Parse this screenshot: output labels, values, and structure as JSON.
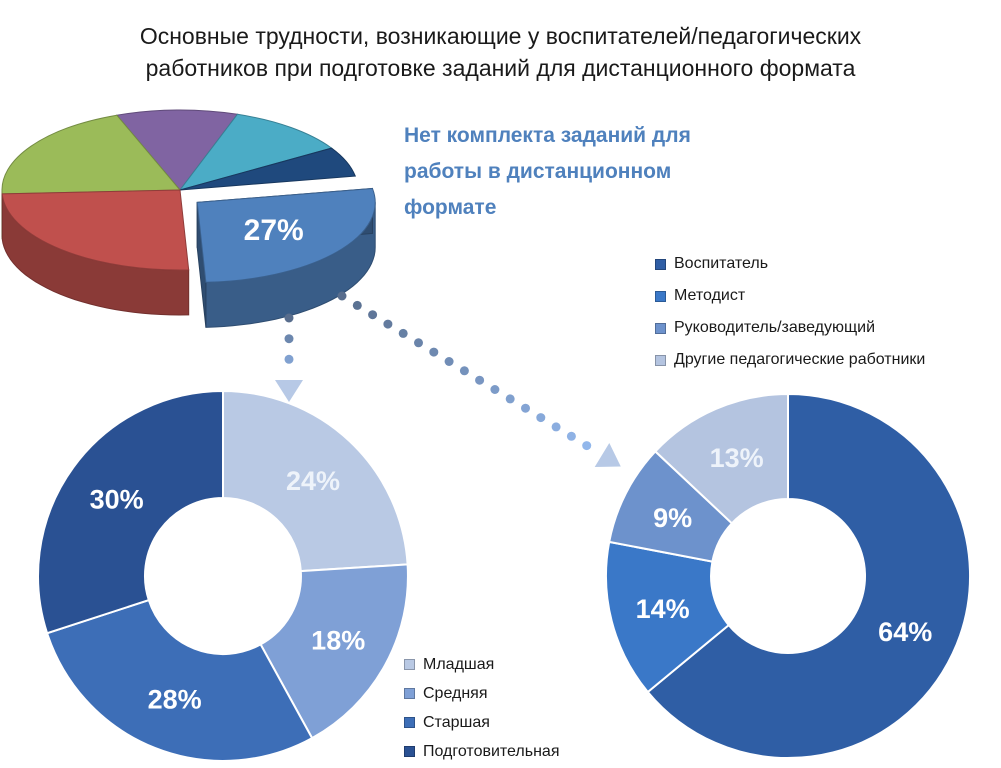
{
  "title": {
    "line1": "Основные трудности, возникающие у воспитателей/педагогических",
    "line2": "работников при подготовке заданий для дистанционного формата"
  },
  "callout": {
    "text": "Нет комплекта заданий для работы в дистанционном формате"
  },
  "chart_data": [
    {
      "type": "pie",
      "style": "3d-exploded",
      "categories": [
        "",
        "",
        "",
        "",
        "",
        ""
      ],
      "values": [
        27,
        25,
        20,
        11,
        11,
        6
      ],
      "colors": [
        "#4f81bd",
        "#c0504d",
        "#9bbb59",
        "#8064a2",
        "#4bacc6",
        "#1f497d"
      ],
      "labels": [
        "27%",
        "",
        "",
        "",
        "",
        ""
      ],
      "exploded_index": 0
    },
    {
      "type": "donut",
      "categories": [
        "Младшая",
        "Средняя",
        "Старшая",
        "Подготовительная"
      ],
      "values": [
        24,
        18,
        28,
        30
      ],
      "labels": [
        "24%",
        "18%",
        "28%",
        "30%"
      ],
      "colors": [
        "#b9c9e4",
        "#7fa0d6",
        "#3d6eb7",
        "#2a5193"
      ],
      "legend": [
        "Младшая",
        "Средняя",
        "Старшая",
        "Подготовительная"
      ],
      "legend_placement": "bottom-right"
    },
    {
      "type": "donut",
      "categories": [
        "Воспитатель",
        "Методист",
        "Руководитель/заведующий",
        "Другие педагогические работники"
      ],
      "values": [
        64,
        14,
        9,
        13
      ],
      "labels": [
        "64%",
        "14%",
        "9%",
        "13%"
      ],
      "colors": [
        "#2f5ea5",
        "#3a78c8",
        "#6d92cc",
        "#b4c4e0"
      ],
      "legend": [
        "Воспитатель",
        "Методист",
        "Руководитель/заведующий",
        "Другие педагогические работники"
      ],
      "legend_placement": "top"
    }
  ]
}
